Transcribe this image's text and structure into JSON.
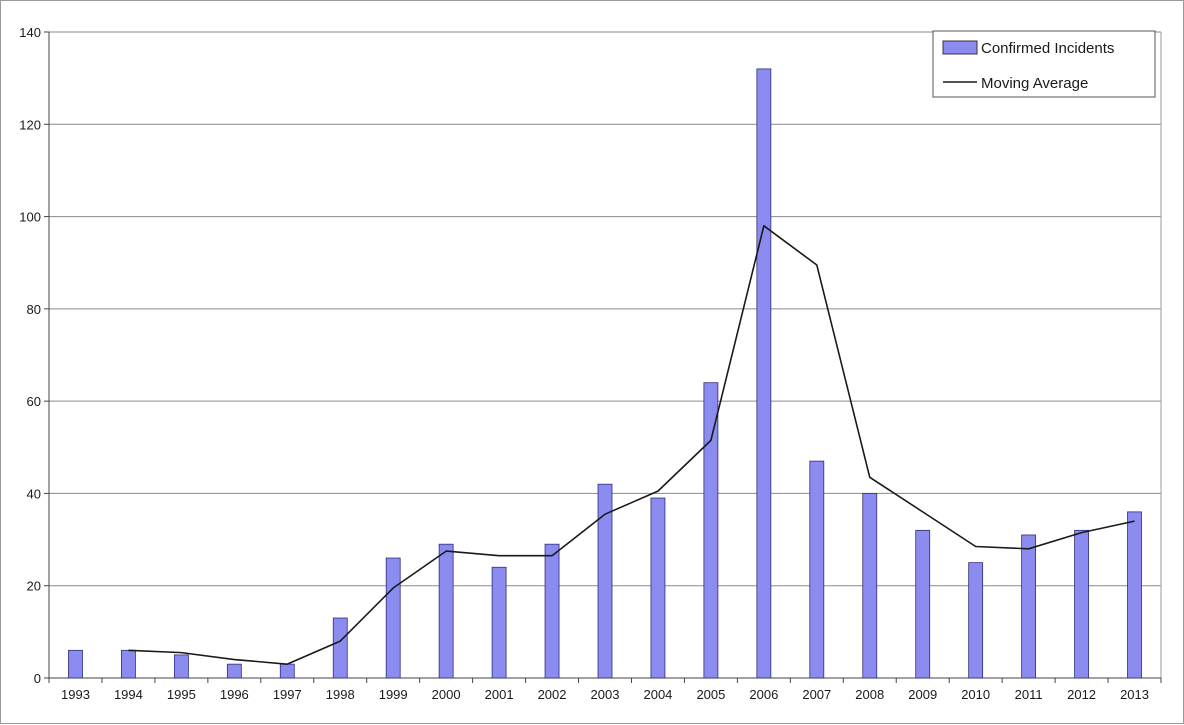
{
  "chart_data": {
    "type": "bar",
    "categories": [
      "1993",
      "1994",
      "1995",
      "1996",
      "1997",
      "1998",
      "1999",
      "2000",
      "2001",
      "2002",
      "2003",
      "2004",
      "2005",
      "2006",
      "2007",
      "2008",
      "2009",
      "2010",
      "2011",
      "2012",
      "2013"
    ],
    "series": [
      {
        "name": "Confirmed Incidents",
        "type": "bar",
        "values": [
          6,
          6,
          5,
          3,
          3,
          13,
          26,
          29,
          24,
          29,
          42,
          39,
          64,
          132,
          47,
          40,
          32,
          25,
          31,
          32,
          36
        ],
        "color": "#8c8cf0"
      },
      {
        "name": "Moving Average",
        "type": "line",
        "values": [
          null,
          6,
          5.5,
          4,
          3,
          8,
          19.5,
          27.5,
          26.5,
          26.5,
          35.5,
          40.5,
          51.5,
          98,
          89.5,
          43.5,
          36,
          28.5,
          28,
          31.5,
          34
        ],
        "color": "#1a1a1a"
      }
    ],
    "ylim": [
      0,
      140
    ],
    "yticks": [
      0,
      20,
      40,
      60,
      80,
      100,
      120,
      140
    ],
    "grid": true,
    "legend_position": "top-right",
    "title": "",
    "xlabel": "",
    "ylabel": ""
  }
}
